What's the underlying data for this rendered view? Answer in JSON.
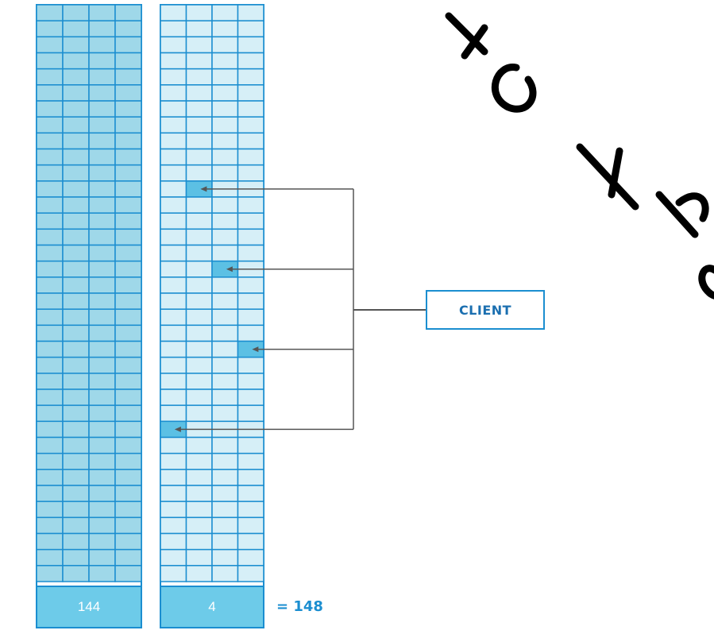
{
  "diagram": {
    "columns": [
      {
        "name": "column-left",
        "count_label": "144",
        "style": "dark",
        "highlighted_cells": []
      },
      {
        "name": "column-right",
        "count_label": "4",
        "style": "light",
        "highlighted_cells": [
          {
            "row": 11,
            "col": 1
          },
          {
            "row": 16,
            "col": 2
          },
          {
            "row": 21,
            "col": 3
          },
          {
            "row": 26,
            "col": 0
          }
        ]
      }
    ],
    "grid": {
      "rows": 36,
      "cols": 4
    },
    "total_label": "= 148",
    "client_label": "CLIENT",
    "colors": {
      "border": "#1b8ed0",
      "dark_fill": "#9fd8e9",
      "light_fill": "#d6eff7",
      "highlight_fill": "#5cc0e4",
      "count_bar_fill": "#6dcbe9",
      "connector": "#555555",
      "watermark": "#000000"
    }
  }
}
